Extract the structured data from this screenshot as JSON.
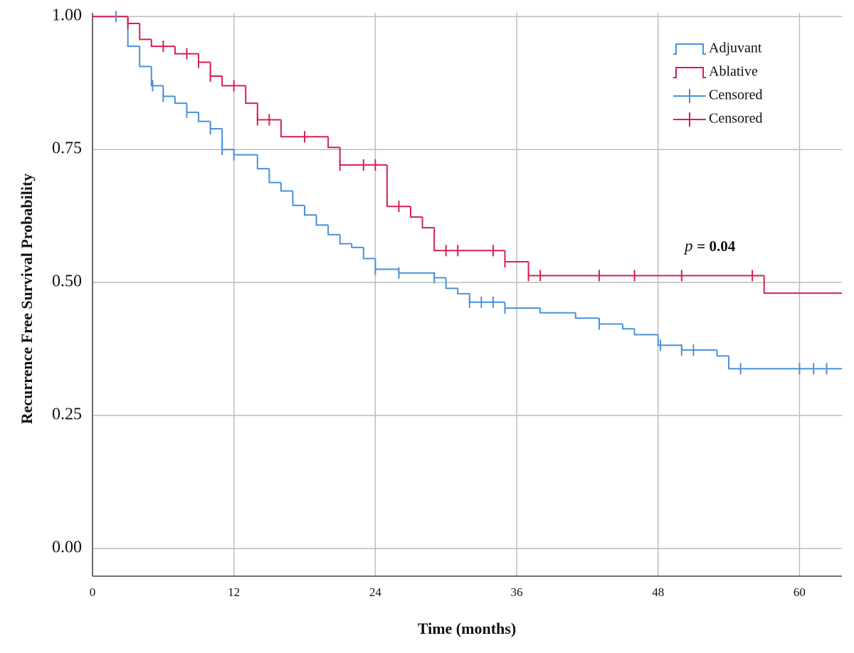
{
  "chart_data": {
    "type": "step",
    "ylabel": "Recurrence Free Survival Probability",
    "xlabel": "Time (months)",
    "annotation_symbol": "p",
    "annotation_value": "= 0.04",
    "xlim": [
      0,
      63.6
    ],
    "ylim": [
      -0.052,
      1.007
    ],
    "xticks": [
      0,
      12,
      24,
      36,
      48,
      60
    ],
    "yticks": [
      {
        "value": 0,
        "label": "0.00"
      },
      {
        "value": 0.25,
        "label": "0.25"
      },
      {
        "value": 0.5,
        "label": "0.50"
      },
      {
        "value": 0.75,
        "label": "0.75"
      },
      {
        "value": 1,
        "label": "1.00"
      }
    ],
    "grid": true,
    "legend": "top-right",
    "series": [
      {
        "name": "Adjuvant",
        "kind": "step",
        "color": "#4a90d9",
        "x": [
          0,
          3,
          4,
          5,
          6,
          7,
          8,
          9,
          10,
          11,
          12,
          14,
          15,
          16,
          17,
          18,
          19,
          20,
          21,
          22,
          23,
          24,
          26,
          29,
          30,
          31,
          32,
          35,
          38,
          41,
          43,
          45,
          46,
          48,
          50,
          53,
          54
        ],
        "values": [
          1,
          0.944,
          0.906,
          0.87,
          0.85,
          0.837,
          0.82,
          0.803,
          0.789,
          0.75,
          0.74,
          0.714,
          0.688,
          0.672,
          0.645,
          0.627,
          0.608,
          0.59,
          0.573,
          0.566,
          0.545,
          0.525,
          0.518,
          0.509,
          0.489,
          0.479,
          0.463,
          0.452,
          0.443,
          0.433,
          0.422,
          0.413,
          0.402,
          0.382,
          0.373,
          0.362,
          0.338
        ]
      },
      {
        "name": "Ablative",
        "kind": "step",
        "color": "#d6204f",
        "x": [
          0,
          3,
          4,
          5,
          7,
          9,
          10,
          11,
          13,
          14,
          16,
          20,
          21,
          25,
          27,
          28,
          29,
          35,
          37,
          57
        ],
        "values": [
          1,
          0.987,
          0.957,
          0.944,
          0.93,
          0.914,
          0.888,
          0.87,
          0.837,
          0.806,
          0.774,
          0.754,
          0.721,
          0.643,
          0.623,
          0.603,
          0.56,
          0.539,
          0.513,
          0.48
        ]
      },
      {
        "name": "Censored",
        "kind": "censor",
        "color": "#4a90d9",
        "x": [
          2,
          5.1,
          6,
          8,
          10,
          11,
          12,
          24,
          26,
          29,
          32,
          33,
          34,
          35,
          43,
          48.2,
          50,
          51,
          55,
          60,
          61.2,
          62.3
        ],
        "values": [
          1,
          0.87,
          0.85,
          0.82,
          0.789,
          0.75,
          0.74,
          0.525,
          0.518,
          0.509,
          0.463,
          0.463,
          0.463,
          0.452,
          0.422,
          0.382,
          0.373,
          0.373,
          0.338,
          0.338,
          0.338,
          0.338
        ]
      },
      {
        "name": "Censored",
        "kind": "censor",
        "color": "#d6204f",
        "x": [
          3,
          6,
          8,
          9,
          10,
          12,
          14,
          15,
          18,
          21,
          23,
          24,
          26,
          30,
          31,
          34,
          35,
          37,
          38,
          43,
          46,
          50,
          56
        ],
        "values": [
          0.987,
          0.944,
          0.93,
          0.914,
          0.888,
          0.87,
          0.806,
          0.806,
          0.774,
          0.721,
          0.721,
          0.721,
          0.643,
          0.56,
          0.56,
          0.56,
          0.539,
          0.513,
          0.513,
          0.513,
          0.513,
          0.513,
          0.513
        ]
      }
    ]
  }
}
